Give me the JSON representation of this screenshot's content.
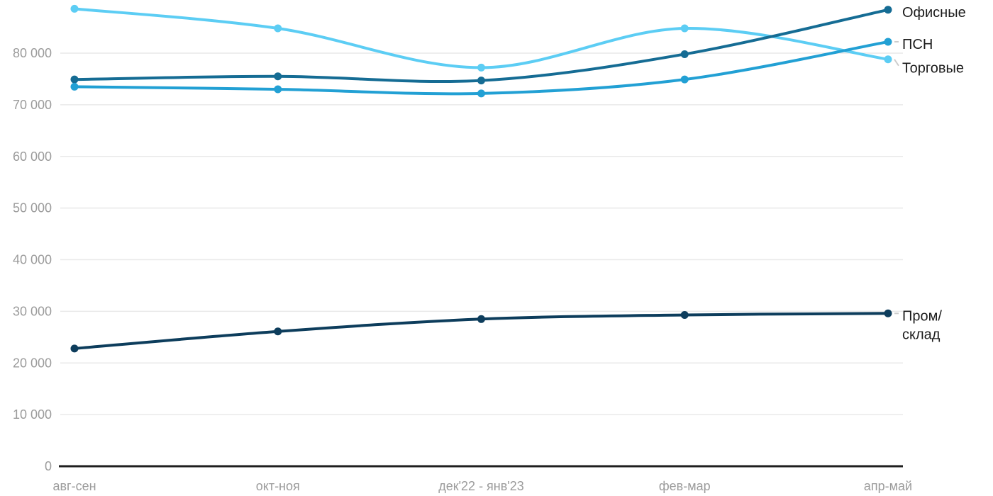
{
  "chart_data": {
    "type": "line",
    "title": "",
    "xlabel": "",
    "ylabel": "",
    "categories": [
      "авг-сен",
      "окт-ноя",
      "дек'22 - янв'23",
      "фев-мар",
      "апр-май"
    ],
    "series": [
      {
        "name": "Офисные",
        "values": [
          74900,
          75500,
          74700,
          79800,
          88400
        ],
        "color": "#156c94",
        "label_lines": [
          "Офисные"
        ],
        "label_dy": 0,
        "connector": false
      },
      {
        "name": "ПСН",
        "values": [
          73500,
          73000,
          72200,
          74900,
          82200
        ],
        "color": "#22a0d4",
        "label_lines": [
          "ПСН"
        ],
        "label_dy": 0,
        "connector": true
      },
      {
        "name": "Торговые",
        "values": [
          88600,
          84800,
          77200,
          84800,
          78800
        ],
        "color": "#5ccdf4",
        "label_lines": [
          "Торговые"
        ],
        "label_dy": 9,
        "connector": true
      },
      {
        "name": "Пром/склад",
        "values": [
          22800,
          26100,
          28500,
          29300,
          29600
        ],
        "color": "#0d3d5c",
        "label_lines": [
          "Пром/",
          "склад"
        ],
        "label_dy": 0,
        "connector": true
      }
    ],
    "y_ticks": [
      0,
      10000,
      20000,
      30000,
      40000,
      50000,
      60000,
      70000,
      80000
    ],
    "ylim": [
      0,
      90000
    ],
    "grid": true,
    "legend_position": "right-of-line-end",
    "line_style": "smooth-curve-with-point-markers"
  },
  "colors": {
    "background": "#ffffff",
    "gridline": "#e9e9e9",
    "axis_line": "#1f1f1f",
    "tick_label": "#9b9b9b",
    "series_label": "#1c1c1c",
    "connector": "#cccccc"
  }
}
